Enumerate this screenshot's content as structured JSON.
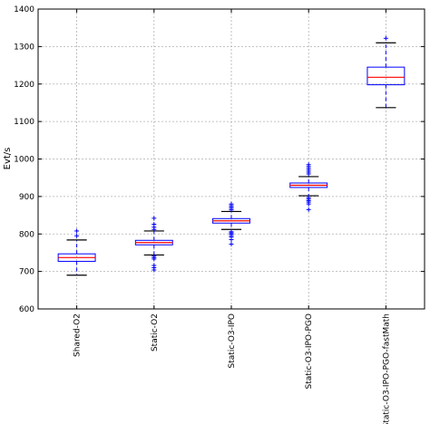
{
  "chart_data": {
    "type": "box",
    "title": "",
    "xlabel": "",
    "ylabel": "Evt/s",
    "ylim": [
      600,
      1400
    ],
    "yticks": [
      600,
      700,
      800,
      900,
      1000,
      1100,
      1200,
      1300,
      1400
    ],
    "grid": true,
    "legend": "none",
    "categories": [
      "Shared-O2",
      "Static-O2",
      "Static-O3-IPO",
      "Static-O3-IPO-PGO",
      "Static-O3-IPO-PGO-fastMath"
    ],
    "boxes": [
      {
        "category": "Shared-O2",
        "whisker_low": 690,
        "q1": 727,
        "median": 737,
        "q3": 747,
        "whisker_high": 784,
        "outliers": [
          795,
          808
        ]
      },
      {
        "category": "Static-O2",
        "whisker_low": 744,
        "q1": 771,
        "median": 777,
        "q3": 783,
        "whisker_high": 808,
        "outliers": [
          704,
          710,
          716,
          733,
          737,
          741,
          812,
          818,
          826,
          842
        ]
      },
      {
        "category": "Static-O3-IPO",
        "whisker_low": 812,
        "q1": 829,
        "median": 835,
        "q3": 841,
        "whisker_high": 860,
        "outliers": [
          773,
          785,
          792,
          796,
          800,
          803,
          806,
          864,
          868,
          872,
          876,
          880
        ]
      },
      {
        "category": "Static-O3-IPO-PGO",
        "whisker_low": 902,
        "q1": 924,
        "median": 930,
        "q3": 936,
        "whisker_high": 953,
        "outliers": [
          865,
          880,
          885,
          889,
          893,
          897,
          960,
          965,
          970,
          975,
          980,
          985
        ]
      },
      {
        "category": "Static-O3-IPO-PGO-fastMath",
        "whisker_low": 1137,
        "q1": 1198,
        "median": 1218,
        "q3": 1245,
        "whisker_high": 1310,
        "outliers": [
          1322
        ]
      }
    ],
    "colors": {
      "box": "#0000ff",
      "median": "#ff0000",
      "whisker": "#0000ff",
      "cap": "#000000",
      "outlier": "#0000ff",
      "grid": "#b0b0b0",
      "axes": "#000000"
    }
  }
}
